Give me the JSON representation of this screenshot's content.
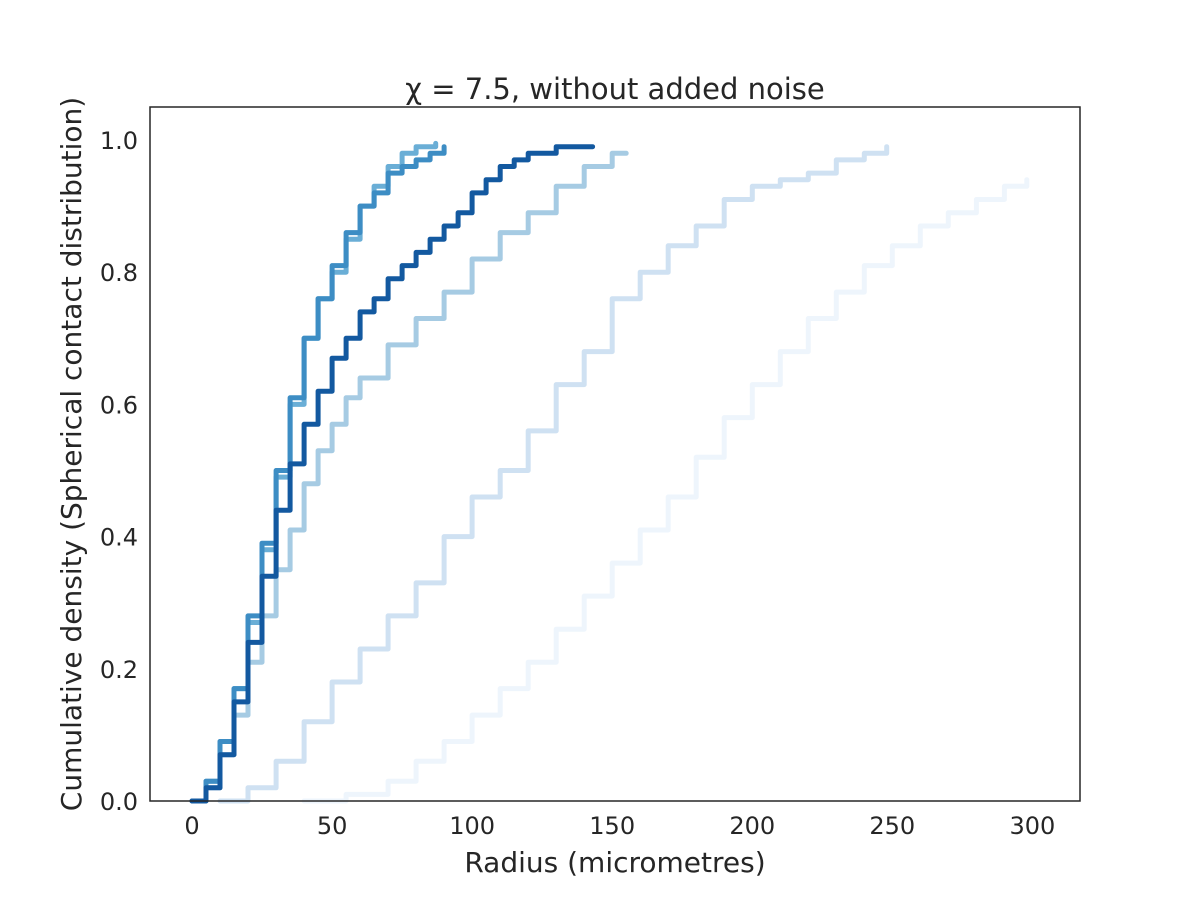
{
  "chart_data": {
    "type": "line",
    "title": "χ = 7.5, without added noise",
    "xlabel": "Radius (micrometres)",
    "ylabel": "Cumulative density (Spherical contact distribution)",
    "xlim": [
      -15,
      317
    ],
    "ylim": [
      0,
      1.05
    ],
    "xticks": [
      "0",
      "50",
      "100",
      "150",
      "200",
      "250",
      "300"
    ],
    "yticks": [
      "0.0",
      "0.2",
      "0.4",
      "0.6",
      "0.8",
      "1.0"
    ],
    "grid": false,
    "legend": false,
    "series": [
      {
        "color": "#eef5fc",
        "points": [
          [
            40,
            0.0
          ],
          [
            55,
            0.01
          ],
          [
            70,
            0.03
          ],
          [
            80,
            0.06
          ],
          [
            90,
            0.09
          ],
          [
            100,
            0.13
          ],
          [
            110,
            0.17
          ],
          [
            120,
            0.21
          ],
          [
            130,
            0.26
          ],
          [
            140,
            0.31
          ],
          [
            150,
            0.36
          ],
          [
            160,
            0.41
          ],
          [
            170,
            0.46
          ],
          [
            180,
            0.52
          ],
          [
            190,
            0.58
          ],
          [
            200,
            0.63
          ],
          [
            210,
            0.68
          ],
          [
            220,
            0.73
          ],
          [
            230,
            0.77
          ],
          [
            240,
            0.81
          ],
          [
            250,
            0.84
          ],
          [
            260,
            0.87
          ],
          [
            270,
            0.89
          ],
          [
            280,
            0.91
          ],
          [
            290,
            0.93
          ],
          [
            298,
            0.94
          ]
        ]
      },
      {
        "color": "#cfe1f2",
        "points": [
          [
            10,
            0.0
          ],
          [
            20,
            0.02
          ],
          [
            30,
            0.06
          ],
          [
            40,
            0.12
          ],
          [
            50,
            0.18
          ],
          [
            60,
            0.23
          ],
          [
            70,
            0.28
          ],
          [
            80,
            0.33
          ],
          [
            90,
            0.4
          ],
          [
            100,
            0.46
          ],
          [
            110,
            0.5
          ],
          [
            120,
            0.56
          ],
          [
            130,
            0.63
          ],
          [
            140,
            0.68
          ],
          [
            150,
            0.76
          ],
          [
            160,
            0.8
          ],
          [
            170,
            0.84
          ],
          [
            180,
            0.87
          ],
          [
            190,
            0.91
          ],
          [
            200,
            0.93
          ],
          [
            210,
            0.94
          ],
          [
            220,
            0.95
          ],
          [
            230,
            0.97
          ],
          [
            240,
            0.98
          ],
          [
            248,
            0.99
          ]
        ]
      },
      {
        "color": "#a6cbe3",
        "points": [
          [
            0,
            0.0
          ],
          [
            5,
            0.02
          ],
          [
            10,
            0.07
          ],
          [
            15,
            0.13
          ],
          [
            20,
            0.21
          ],
          [
            25,
            0.28
          ],
          [
            30,
            0.35
          ],
          [
            35,
            0.41
          ],
          [
            40,
            0.48
          ],
          [
            45,
            0.53
          ],
          [
            50,
            0.57
          ],
          [
            55,
            0.61
          ],
          [
            60,
            0.64
          ],
          [
            70,
            0.69
          ],
          [
            80,
            0.73
          ],
          [
            90,
            0.77
          ],
          [
            100,
            0.82
          ],
          [
            110,
            0.86
          ],
          [
            120,
            0.89
          ],
          [
            130,
            0.93
          ],
          [
            140,
            0.96
          ],
          [
            150,
            0.98
          ],
          [
            155,
            0.98
          ]
        ]
      },
      {
        "color": "#6aaed6",
        "points": [
          [
            0,
            0.0
          ],
          [
            5,
            0.03
          ],
          [
            10,
            0.09
          ],
          [
            15,
            0.17
          ],
          [
            20,
            0.27
          ],
          [
            25,
            0.38
          ],
          [
            30,
            0.49
          ],
          [
            35,
            0.6
          ],
          [
            40,
            0.7
          ],
          [
            45,
            0.76
          ],
          [
            50,
            0.8
          ],
          [
            55,
            0.85
          ],
          [
            60,
            0.9
          ],
          [
            65,
            0.93
          ],
          [
            70,
            0.96
          ],
          [
            75,
            0.98
          ],
          [
            80,
            0.99
          ],
          [
            87,
            0.995
          ]
        ]
      },
      {
        "color": "#3d8dc4",
        "points": [
          [
            0,
            0.0
          ],
          [
            5,
            0.03
          ],
          [
            10,
            0.09
          ],
          [
            15,
            0.17
          ],
          [
            20,
            0.28
          ],
          [
            25,
            0.39
          ],
          [
            30,
            0.5
          ],
          [
            35,
            0.61
          ],
          [
            40,
            0.7
          ],
          [
            45,
            0.76
          ],
          [
            50,
            0.81
          ],
          [
            55,
            0.86
          ],
          [
            60,
            0.9
          ],
          [
            65,
            0.92
          ],
          [
            70,
            0.95
          ],
          [
            75,
            0.96
          ],
          [
            80,
            0.97
          ],
          [
            85,
            0.98
          ],
          [
            90,
            0.99
          ]
        ]
      },
      {
        "color": "#1359a0",
        "points": [
          [
            0,
            0.0
          ],
          [
            5,
            0.02
          ],
          [
            10,
            0.07
          ],
          [
            15,
            0.15
          ],
          [
            20,
            0.24
          ],
          [
            25,
            0.34
          ],
          [
            30,
            0.44
          ],
          [
            35,
            0.51
          ],
          [
            40,
            0.57
          ],
          [
            45,
            0.62
          ],
          [
            50,
            0.67
          ],
          [
            55,
            0.7
          ],
          [
            60,
            0.74
          ],
          [
            65,
            0.76
          ],
          [
            70,
            0.79
          ],
          [
            75,
            0.81
          ],
          [
            80,
            0.83
          ],
          [
            85,
            0.85
          ],
          [
            90,
            0.87
          ],
          [
            95,
            0.89
          ],
          [
            100,
            0.92
          ],
          [
            105,
            0.94
          ],
          [
            110,
            0.96
          ],
          [
            115,
            0.97
          ],
          [
            120,
            0.98
          ],
          [
            130,
            0.99
          ],
          [
            143,
            0.99
          ]
        ]
      }
    ]
  }
}
